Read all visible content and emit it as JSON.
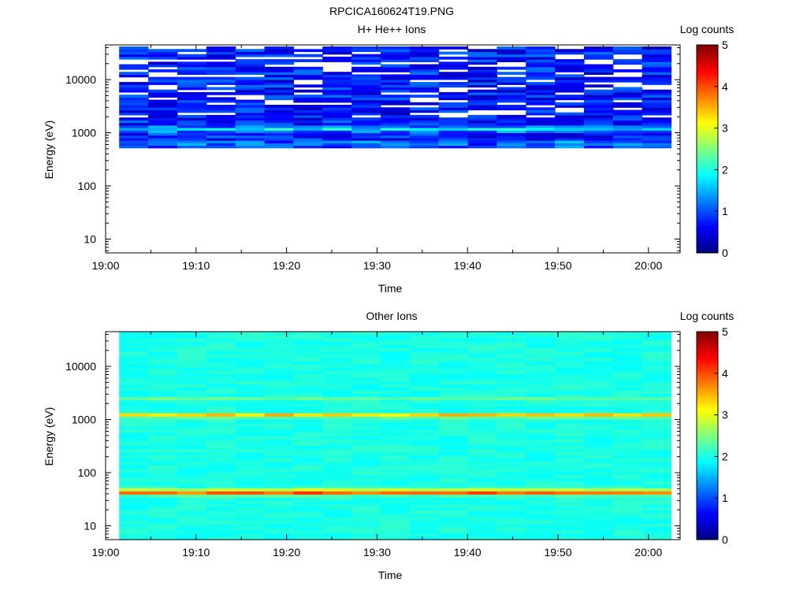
{
  "figure_title": "RPCICA160624T19.PNG",
  "colors": {
    "background": "#ffffff",
    "axis": "#000000",
    "empty_bin": "#ffffff",
    "colormap": "jet"
  },
  "chart_data": [
    {
      "type": "heatmap",
      "title": "H+ He++ Ions",
      "xlabel": "Time",
      "ylabel": "Energy (eV)",
      "x_ticks": [
        "19:00",
        "19:10",
        "19:20",
        "19:30",
        "19:40",
        "19:50",
        "20:00"
      ],
      "x_range_minutes": [
        0,
        63.5
      ],
      "data_time_range_minutes": [
        1.5,
        62.5
      ],
      "y_scale": "log",
      "y_range_eV": [
        5.5,
        45000
      ],
      "y_ticks": [
        "10",
        "100",
        "1000",
        "10000"
      ],
      "energy_range_eV": [
        520,
        42000
      ],
      "colorbar": {
        "label": "Log counts",
        "range": [
          0,
          5
        ],
        "ticks": [
          "0",
          "1",
          "2",
          "3",
          "4",
          "5"
        ]
      },
      "time_bins": 19,
      "energy_bins": 40,
      "description": "sparse blue counts (log counts mostly 0.3-1.2) with many empty bins above 2000 eV; brighter cyan band (log counts ~1.5-2) near 1000-1300 eV"
    },
    {
      "type": "heatmap",
      "title": "Other Ions",
      "xlabel": "Time",
      "ylabel": "Energy (eV)",
      "x_ticks": [
        "19:00",
        "19:10",
        "19:20",
        "19:30",
        "19:40",
        "19:50",
        "20:00"
      ],
      "x_range_minutes": [
        0,
        63.5
      ],
      "data_time_range_minutes": [
        1.5,
        62.5
      ],
      "y_scale": "log",
      "y_range_eV": [
        5.5,
        45000
      ],
      "y_ticks": [
        "10",
        "100",
        "1000",
        "10000"
      ],
      "energy_range_eV": [
        5.5,
        45000
      ],
      "colorbar": {
        "label": "Log counts",
        "range": [
          0,
          5
        ],
        "ticks": [
          "0",
          "1",
          "2",
          "3",
          "4",
          "5"
        ]
      },
      "time_bins": 19,
      "energy_bins": 64,
      "description": "background log counts ~2.0-2.2 everywhere; bright bands at ~1200 eV (log counts ~3.3-3.8) and ~45 eV (log counts ~3.6-4.2); weak band near 2500 eV (~2.4)"
    }
  ]
}
